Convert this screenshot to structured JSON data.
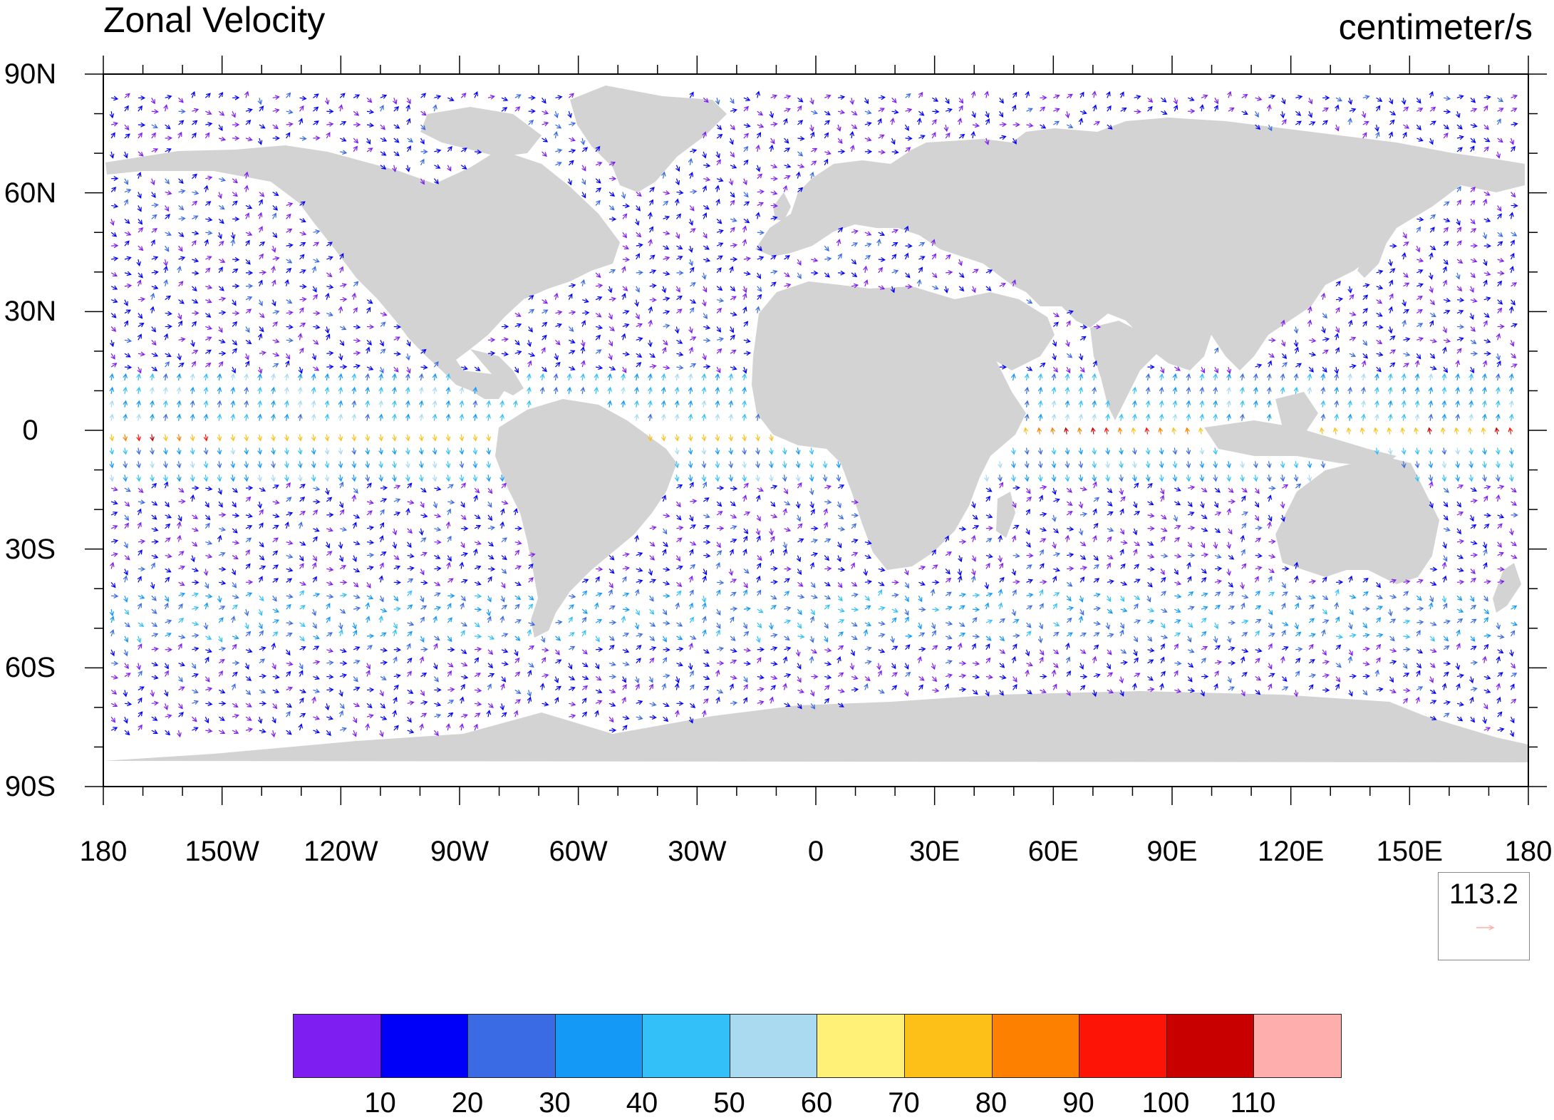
{
  "title": "Zonal Velocity",
  "units": "centimeter/s",
  "latitude_labels": [
    "90N",
    "60N",
    "30N",
    "0",
    "30S",
    "60S",
    "90S"
  ],
  "longitude_labels": [
    "180",
    "150W",
    "120W",
    "90W",
    "60W",
    "30W",
    "0",
    "30E",
    "60E",
    "90E",
    "120E",
    "150E",
    "180"
  ],
  "reference_vector": {
    "value": "113.2",
    "color": "#ffadad"
  },
  "colorbar": {
    "levels": [
      "10",
      "20",
      "30",
      "40",
      "50",
      "60",
      "70",
      "80",
      "90",
      "100",
      "110"
    ],
    "colors": [
      "#7e1ef0",
      "#0000f8",
      "#3a6ae4",
      "#1499f7",
      "#33c0f8",
      "#a9daf0",
      "#fff177",
      "#fdc018",
      "#fe8001",
      "#fe1407",
      "#c80000",
      "#ffaeae"
    ]
  },
  "map": {
    "land_color": "#d3d3d3",
    "ocean_color": "#ffffff",
    "projection": "cylindrical equidistant",
    "lon_range": [
      -180,
      180
    ],
    "lat_range": [
      -90,
      90
    ]
  }
}
